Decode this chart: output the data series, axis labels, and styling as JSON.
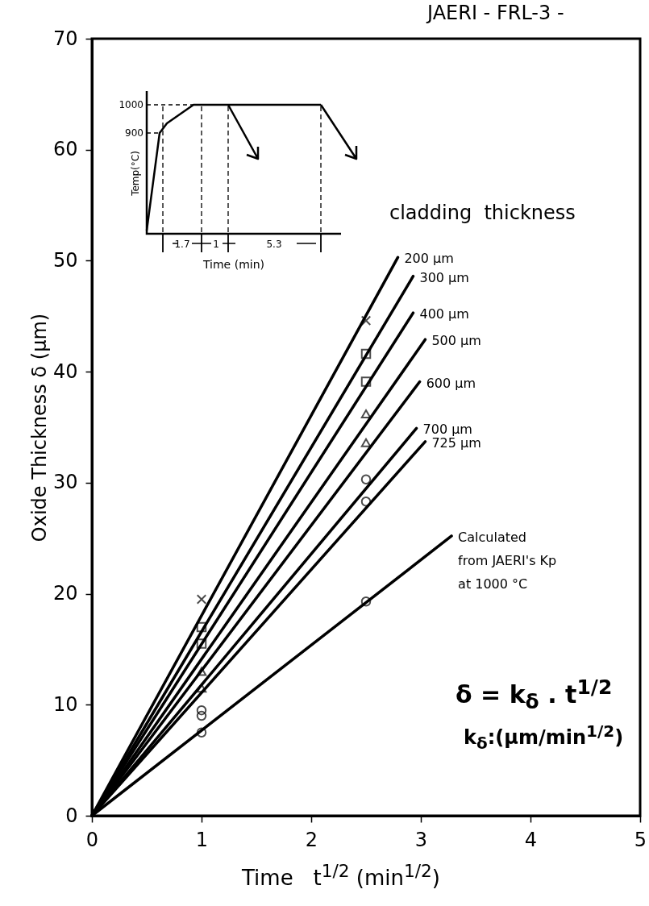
{
  "chart_data": [
    {
      "type": "line",
      "xlabel": "Time   t$^{1/2}$ (min$^{1/2}$)",
      "ylabel": "Oxide   Thickness   δ (µm)",
      "legend_title": "cladding  thickness",
      "xlim": [
        0,
        5
      ],
      "xticks": [
        0,
        1,
        2,
        3,
        4,
        5
      ],
      "ylim": [
        0,
        70
      ],
      "yticks": [
        0,
        10,
        20,
        30,
        40,
        50,
        60,
        70
      ],
      "annotations": [
        "JAERI - FRL-3 -",
        "δ = k$_{δ}$ . t$^{1/2}$",
        "k$_{δ}$:(µm/min$^{1/2}$)"
      ],
      "series": [
        {
          "name": "200 µm",
          "color": "#000000",
          "x": [
            0,
            2.79
          ],
          "values": [
            0,
            50.3
          ],
          "marker": "none"
        },
        {
          "name": "300 µm",
          "color": "#000000",
          "x": [
            0,
            2.93
          ],
          "values": [
            0,
            48.6
          ],
          "marker": "none"
        },
        {
          "name": "400 µm",
          "color": "#000000",
          "x": [
            0,
            2.93
          ],
          "values": [
            0,
            45.3
          ],
          "marker": "none"
        },
        {
          "name": "500 µm",
          "color": "#000000",
          "x": [
            0,
            3.04
          ],
          "values": [
            0,
            42.9
          ],
          "marker": "none"
        },
        {
          "name": "600 µm",
          "color": "#000000",
          "x": [
            0,
            2.99
          ],
          "values": [
            0,
            39.1
          ],
          "marker": "none"
        },
        {
          "name": "700 µm",
          "color": "#000000",
          "x": [
            0,
            2.96
          ],
          "values": [
            0,
            34.9
          ],
          "marker": "none"
        },
        {
          "name": "725 µm",
          "color": "#000000",
          "x": [
            0,
            3.04
          ],
          "values": [
            0,
            33.7
          ],
          "marker": "none"
        },
        {
          "name": "Calculated\nfrom JAERI's Kp\nat 1000 °C",
          "color": "#000000",
          "x": [
            0,
            3.28
          ],
          "values": [
            0,
            25.2
          ],
          "marker": "none"
        },
        {
          "type": "scatter",
          "color": "#000000",
          "x": [
            1,
            2.5
          ],
          "values": [
            19.5,
            44.6
          ],
          "marker": "cross"
        },
        {
          "type": "scatter",
          "color": "#000000",
          "x": [
            1,
            2.5
          ],
          "values": [
            17,
            41.6
          ],
          "marker": "square"
        },
        {
          "type": "scatter",
          "color": "#000000",
          "x": [
            1,
            2.5
          ],
          "values": [
            15.5,
            39.1
          ],
          "marker": "square"
        },
        {
          "type": "scatter",
          "color": "#000000",
          "x": [
            1,
            2.5
          ],
          "values": [
            13,
            36.2
          ],
          "marker": "triangle"
        },
        {
          "type": "scatter",
          "color": "#000000",
          "x": [
            1,
            2.5
          ],
          "values": [
            11.5,
            33.6
          ],
          "marker": "triangle"
        },
        {
          "type": "scatter",
          "color": "#000000",
          "x": [
            1,
            2.5
          ],
          "values": [
            9.5,
            30.3
          ],
          "marker": "circle"
        },
        {
          "type": "scatter",
          "color": "#000000",
          "x": [
            1,
            2.5
          ],
          "values": [
            9,
            28.3
          ],
          "marker": "circle"
        },
        {
          "type": "scatter",
          "color": "#000000",
          "x": [
            1,
            2.5
          ],
          "values": [
            7.5,
            19.3
          ],
          "marker": "circle"
        }
      ]
    },
    {
      "type": "other",
      "xlabel": "Time (min)",
      "ylabel": "Temp(°C)",
      "annotations": [
        "1000",
        "900",
        "1.7",
        "1",
        "5.3"
      ]
    }
  ]
}
